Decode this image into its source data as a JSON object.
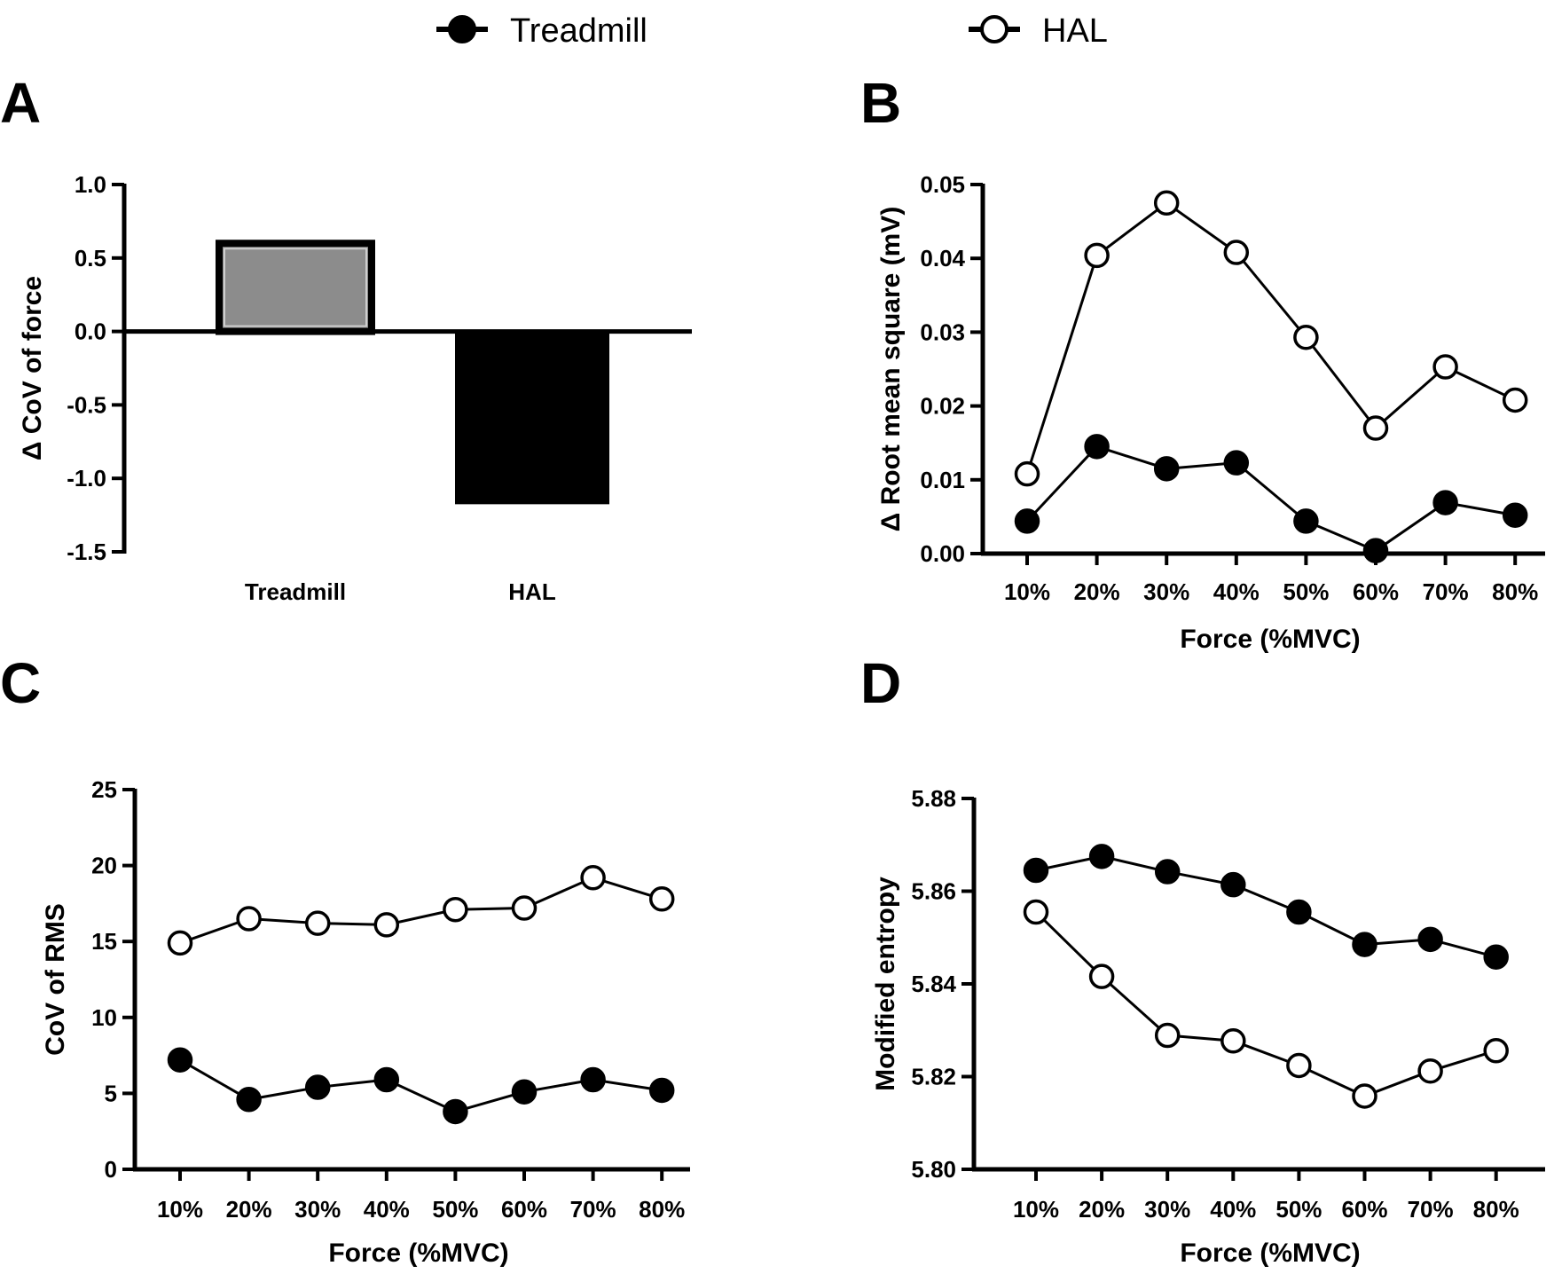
{
  "legend": {
    "items": [
      {
        "label": "Treadmill",
        "marker": "filled-circle",
        "color": "#000000"
      },
      {
        "label": "HAL",
        "marker": "open-circle",
        "color": "#ffffff"
      }
    ]
  },
  "chart_data": [
    {
      "panel": "A",
      "type": "bar",
      "categories": [
        "Treadmill",
        "HAL"
      ],
      "values": [
        0.6,
        -1.17
      ],
      "bar_colors": [
        "#8c8c8c",
        "#000000"
      ],
      "xlabel": "",
      "ylabel": "Δ CoV of force",
      "ylim": [
        -1.5,
        1.0
      ],
      "yticks": [
        1.0,
        0.5,
        0.0,
        -0.5,
        -1.0,
        -1.5
      ],
      "ytick_labels": [
        "1.0",
        "0.5",
        "0.0",
        "-0.5",
        "-1.0",
        "-1.5"
      ],
      "grid": false
    },
    {
      "panel": "B",
      "type": "line",
      "categories": [
        "10%",
        "20%",
        "30%",
        "40%",
        "50%",
        "60%",
        "70%",
        "80%"
      ],
      "series": [
        {
          "name": "Treadmill",
          "values": [
            0.0044,
            0.0145,
            0.0115,
            0.0123,
            0.0044,
            0.0004,
            0.0069,
            0.0052
          ]
        },
        {
          "name": "HAL",
          "values": [
            0.0108,
            0.0404,
            0.0475,
            0.0408,
            0.0293,
            0.017,
            0.0253,
            0.0208
          ]
        }
      ],
      "xlabel": "Force (%MVC)",
      "ylabel": "Δ Root mean square (mV)",
      "ylim": [
        0,
        0.05
      ],
      "yticks": [
        0.05,
        0.04,
        0.03,
        0.02,
        0.01,
        0.0
      ],
      "ytick_labels": [
        "0.05",
        "0.04",
        "0.03",
        "0.02",
        "0.01",
        "0.00"
      ],
      "grid": false
    },
    {
      "panel": "C",
      "type": "line",
      "categories": [
        "10%",
        "20%",
        "30%",
        "40%",
        "50%",
        "60%",
        "70%",
        "80%"
      ],
      "series": [
        {
          "name": "Treadmill",
          "values": [
            7.2,
            4.6,
            5.4,
            5.9,
            3.8,
            5.1,
            5.9,
            5.2
          ]
        },
        {
          "name": "HAL",
          "values": [
            14.9,
            16.5,
            16.2,
            16.1,
            17.1,
            17.2,
            19.2,
            17.8
          ]
        }
      ],
      "xlabel": "Force (%MVC)",
      "ylabel": "CoV of RMS",
      "ylim": [
        0,
        25
      ],
      "yticks": [
        25,
        20,
        15,
        10,
        5,
        0
      ],
      "ytick_labels": [
        "25",
        "20",
        "15",
        "10",
        "5",
        "0"
      ],
      "grid": false
    },
    {
      "panel": "D",
      "type": "line",
      "categories": [
        "10%",
        "20%",
        "30%",
        "40%",
        "50%",
        "60%",
        "70%",
        "80%"
      ],
      "series": [
        {
          "name": "Treadmill",
          "values": [
            5.8645,
            5.8675,
            5.8642,
            5.8614,
            5.8555,
            5.8485,
            5.8496,
            5.8458
          ]
        },
        {
          "name": "HAL",
          "values": [
            5.8555,
            5.8416,
            5.8289,
            5.8277,
            5.8224,
            5.8158,
            5.8212,
            5.8256
          ]
        }
      ],
      "xlabel": "Force (%MVC)",
      "ylabel": "Modified entropy",
      "ylim": [
        5.8,
        5.88
      ],
      "yticks": [
        5.88,
        5.86,
        5.84,
        5.82,
        5.8
      ],
      "ytick_labels": [
        "5.88",
        "5.86",
        "5.84",
        "5.82",
        "5.80"
      ],
      "grid": false
    }
  ]
}
